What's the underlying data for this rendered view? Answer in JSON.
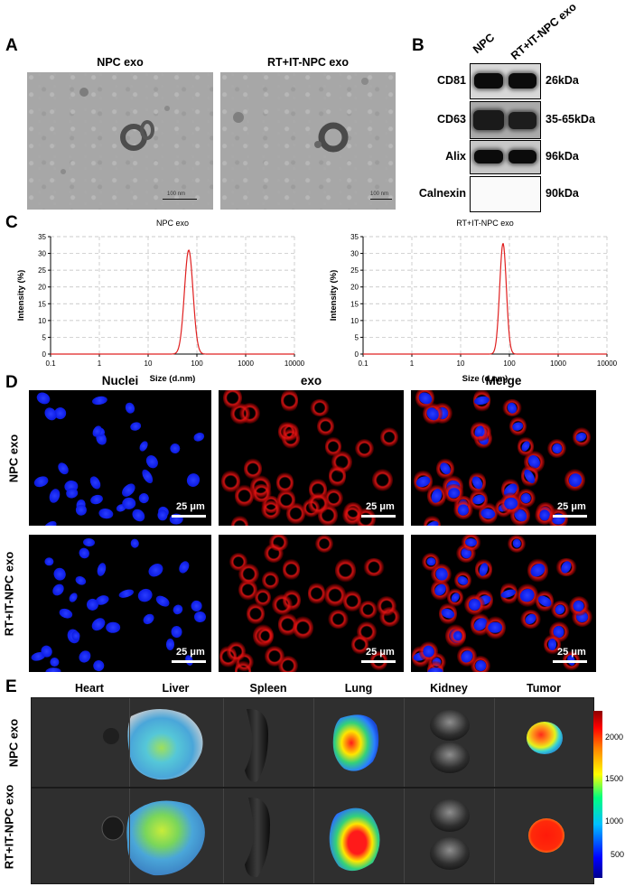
{
  "panels": {
    "A": "A",
    "B": "B",
    "C": "C",
    "D": "D",
    "E": "E"
  },
  "panel_a": {
    "titles": [
      "NPC exo",
      "RT+IT-NPC exo"
    ],
    "scale_label": "100 nm"
  },
  "panel_b": {
    "lanes": [
      "NPC",
      "RT+IT-NPC exo"
    ],
    "rows": [
      {
        "name": "CD81",
        "kda": "26kDa"
      },
      {
        "name": "CD63",
        "kda": "35-65kDa"
      },
      {
        "name": "Alix",
        "kda": "96kDa"
      },
      {
        "name": "Calnexin",
        "kda": "90kDa"
      }
    ]
  },
  "chart_data": [
    {
      "type": "line",
      "title": "NPC exo",
      "xlabel": "Size (d.nm)",
      "ylabel": "Intensity (%)",
      "x_scale": "log",
      "xlim": [
        0.1,
        10000
      ],
      "ylim": [
        0,
        35
      ],
      "x_ticks": [
        "0.1",
        "1",
        "10",
        "100",
        "1000",
        "10000"
      ],
      "y_ticks": [
        "0",
        "5",
        "10",
        "15",
        "20",
        "25",
        "30",
        "35"
      ],
      "grid": true,
      "color": "#e02020",
      "peak": {
        "x": 68,
        "y": 31
      },
      "range": [
        40,
        110
      ]
    },
    {
      "type": "line",
      "title": "RT+IT-NPC exo",
      "xlabel": "Size (d.nm)",
      "ylabel": "Intensity (%)",
      "x_scale": "log",
      "xlim": [
        0.1,
        10000
      ],
      "ylim": [
        0,
        35
      ],
      "x_ticks": [
        "0.1",
        "1",
        "10",
        "100",
        "1000",
        "10000"
      ],
      "y_ticks": [
        "0",
        "5",
        "10",
        "15",
        "20",
        "25",
        "30",
        "35"
      ],
      "grid": true,
      "color": "#e02020",
      "peak": {
        "x": 74,
        "y": 33
      },
      "range": [
        50,
        110
      ]
    }
  ],
  "panel_d": {
    "columns": [
      "Nuclei",
      "exo",
      "Merge"
    ],
    "rows": [
      "NPC exo",
      "RT+IT-NPC exo"
    ],
    "scale_label": "25 μm"
  },
  "panel_e": {
    "organs": [
      "Heart",
      "Liver",
      "Spleen",
      "Lung",
      "Kidney",
      "Tumor"
    ],
    "rows": [
      "NPC exo",
      "RT+IT-NPC exo"
    ],
    "colorbar_ticks": [
      "2000",
      "1500",
      "1000",
      "500"
    ]
  }
}
